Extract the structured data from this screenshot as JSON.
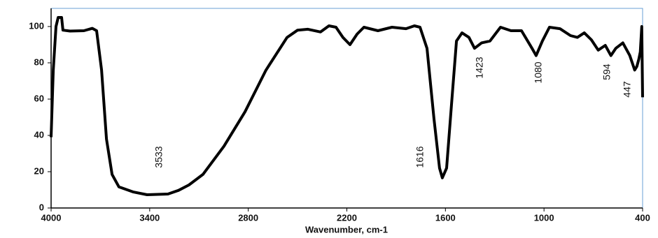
{
  "chart_data": {
    "type": "line",
    "x_label": "Wavenumber, cm-1",
    "xlim": [
      4000,
      400
    ],
    "ylim": [
      0,
      110
    ],
    "xticks": [
      4000,
      3400,
      2800,
      2200,
      1600,
      1000,
      400
    ],
    "yticks": [
      0,
      20,
      40,
      60,
      80,
      100
    ],
    "series": [
      {
        "color": "#000000",
        "x": [
          4000,
          3987,
          3970,
          3957,
          3936,
          3928,
          3885,
          3800,
          3749,
          3723,
          3693,
          3663,
          3629,
          3587,
          3502,
          3416,
          3289,
          3225,
          3161,
          3076,
          2948,
          2820,
          2692,
          2564,
          2500,
          2437,
          2360,
          2309,
          2266,
          2224,
          2181,
          2138,
          2096,
          2011,
          1925,
          1840,
          1789,
          1755,
          1712,
          1670,
          1636,
          1619,
          1593,
          1563,
          1533,
          1499,
          1457,
          1423,
          1380,
          1329,
          1265,
          1201,
          1137,
          1073,
          1048,
          1010,
          967,
          903,
          839,
          797,
          755,
          712,
          670,
          627,
          593,
          563,
          520,
          478,
          448,
          435,
          423,
          414,
          405,
          400
        ],
        "values": [
          39,
          76,
          100,
          105,
          105,
          98,
          97.5,
          97.7,
          99,
          97.7,
          76,
          38,
          18.5,
          11.6,
          8.9,
          7.3,
          7.7,
          9.7,
          12.7,
          18.5,
          34,
          53,
          76,
          94,
          98,
          98.5,
          97,
          100.4,
          99.6,
          94,
          90,
          95.8,
          99.6,
          97.7,
          99.6,
          98.8,
          100.4,
          99.6,
          88,
          49.4,
          22,
          16.6,
          22,
          57,
          92,
          96.5,
          94,
          88,
          91,
          92,
          99.6,
          97.7,
          97.7,
          88,
          84,
          92,
          99.6,
          98.8,
          95,
          94,
          96.5,
          92.7,
          87,
          89.6,
          84,
          88,
          91,
          84,
          76,
          78,
          82,
          86,
          100,
          61
        ]
      }
    ],
    "annotations": [
      "3533",
      "1616",
      "1423",
      "1080",
      "594",
      "447"
    ]
  }
}
